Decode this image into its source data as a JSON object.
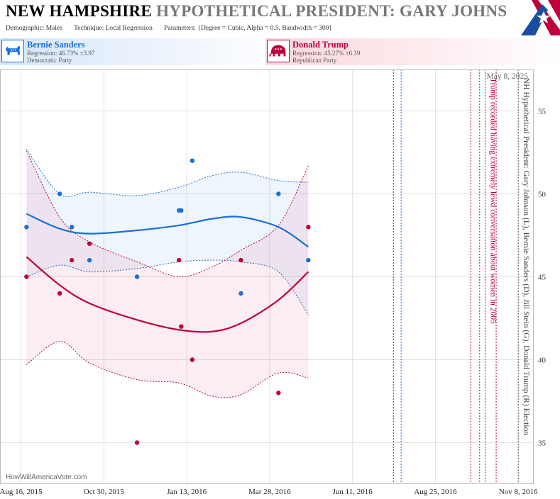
{
  "header": {
    "state": "NEW HAMPSHIRE",
    "title_rest": "HYPOTHETICAL PRESIDENT:  GARY JOHNSON",
    "demographic": "Demographic: Males",
    "technique": "Technique: Local Regression",
    "parameters": "Parameters: {Degree = Cubic, Alpha = 0.5, Bandwidth = 300}"
  },
  "candidates": {
    "dem": {
      "name": "Bernie Sanders",
      "regression": "Regression: 46.73% ±3.97",
      "party": "Democratic Party",
      "color": "#1a6fd8",
      "logo": "donkey-icon"
    },
    "rep": {
      "name": "Donald Trump",
      "regression": "Regression: 45.27% ±6.39",
      "party": "Republican Party",
      "color": "#c0003a",
      "logo": "elephant-icon"
    }
  },
  "watermark": "HowWillAmericaVote.com",
  "chart_data": {
    "type": "scatter",
    "x_range": [
      "2015-07-28",
      "2016-11-22"
    ],
    "ylim": [
      32.5,
      57.5
    ],
    "y_ticks": [
      35,
      40,
      45,
      50,
      55
    ],
    "x_ticks": [
      {
        "date": "2015-08-16",
        "label": "Aug 16, 2015"
      },
      {
        "date": "2015-10-30",
        "label": "Oct 30, 2015"
      },
      {
        "date": "2016-01-13",
        "label": "Jan 13, 2016"
      },
      {
        "date": "2016-03-28",
        "label": "Mar 28, 2016"
      },
      {
        "date": "2016-06-11",
        "label": "Jun 11, 2016"
      },
      {
        "date": "2016-08-25",
        "label": "Aug 25, 2016"
      },
      {
        "date": "2016-11-08",
        "label": "Nov 8, 2016"
      }
    ],
    "date_label": "May 8, 2025",
    "series": [
      {
        "name": "Bernie Sanders",
        "color": "#1a6fd8",
        "points": [
          {
            "x": "2015-08-21",
            "y": 48
          },
          {
            "x": "2015-09-20",
            "y": 50
          },
          {
            "x": "2015-10-01",
            "y": 48
          },
          {
            "x": "2015-10-17",
            "y": 46
          },
          {
            "x": "2015-11-29",
            "y": 45
          },
          {
            "x": "2016-01-06",
            "y": 49
          },
          {
            "x": "2016-01-08",
            "y": 49
          },
          {
            "x": "2016-01-18",
            "y": 52
          },
          {
            "x": "2016-03-02",
            "y": 44
          },
          {
            "x": "2016-04-05",
            "y": 50
          },
          {
            "x": "2016-05-02",
            "y": 46
          }
        ],
        "fit": [
          {
            "x": "2015-08-21",
            "y": 48.8
          },
          {
            "x": "2015-09-20",
            "y": 47.9
          },
          {
            "x": "2015-10-17",
            "y": 47.6
          },
          {
            "x": "2015-11-29",
            "y": 47.8
          },
          {
            "x": "2016-01-06",
            "y": 48.1
          },
          {
            "x": "2016-02-05",
            "y": 48.5
          },
          {
            "x": "2016-03-02",
            "y": 48.6
          },
          {
            "x": "2016-04-05",
            "y": 48.0
          },
          {
            "x": "2016-05-02",
            "y": 46.8
          }
        ],
        "upper": [
          {
            "x": "2015-08-21",
            "y": 52.7
          },
          {
            "x": "2015-09-20",
            "y": 50.0
          },
          {
            "x": "2015-10-17",
            "y": 50.1
          },
          {
            "x": "2015-11-29",
            "y": 49.9
          },
          {
            "x": "2016-01-06",
            "y": 50.4
          },
          {
            "x": "2016-02-05",
            "y": 51.1
          },
          {
            "x": "2016-03-02",
            "y": 51.3
          },
          {
            "x": "2016-04-05",
            "y": 50.8
          },
          {
            "x": "2016-05-02",
            "y": 50.7
          }
        ],
        "lower": [
          {
            "x": "2015-08-21",
            "y": 45.0
          },
          {
            "x": "2015-09-20",
            "y": 45.7
          },
          {
            "x": "2015-10-17",
            "y": 45.3
          },
          {
            "x": "2015-11-29",
            "y": 45.5
          },
          {
            "x": "2016-01-06",
            "y": 45.9
          },
          {
            "x": "2016-02-05",
            "y": 46.0
          },
          {
            "x": "2016-03-02",
            "y": 45.9
          },
          {
            "x": "2016-04-05",
            "y": 45.3
          },
          {
            "x": "2016-05-02",
            "y": 42.7
          }
        ]
      },
      {
        "name": "Donald Trump",
        "color": "#c0003a",
        "points": [
          {
            "x": "2015-08-21",
            "y": 45
          },
          {
            "x": "2015-09-20",
            "y": 44
          },
          {
            "x": "2015-10-01",
            "y": 46
          },
          {
            "x": "2015-10-17",
            "y": 47
          },
          {
            "x": "2015-11-29",
            "y": 35
          },
          {
            "x": "2016-01-06",
            "y": 46
          },
          {
            "x": "2016-01-08",
            "y": 42
          },
          {
            "x": "2016-01-18",
            "y": 40
          },
          {
            "x": "2016-03-02",
            "y": 46
          },
          {
            "x": "2016-04-05",
            "y": 38
          },
          {
            "x": "2016-05-02",
            "y": 48
          }
        ],
        "fit": [
          {
            "x": "2015-08-21",
            "y": 46.2
          },
          {
            "x": "2015-09-20",
            "y": 44.5
          },
          {
            "x": "2015-10-17",
            "y": 43.4
          },
          {
            "x": "2015-11-29",
            "y": 42.4
          },
          {
            "x": "2016-01-06",
            "y": 41.8
          },
          {
            "x": "2016-02-05",
            "y": 41.7
          },
          {
            "x": "2016-03-02",
            "y": 42.2
          },
          {
            "x": "2016-04-05",
            "y": 43.6
          },
          {
            "x": "2016-05-02",
            "y": 45.3
          }
        ],
        "upper": [
          {
            "x": "2015-08-21",
            "y": 52.6
          },
          {
            "x": "2015-09-20",
            "y": 48.6
          },
          {
            "x": "2015-10-17",
            "y": 47.1
          },
          {
            "x": "2015-11-29",
            "y": 45.9
          },
          {
            "x": "2016-01-06",
            "y": 45.0
          },
          {
            "x": "2016-02-05",
            "y": 45.6
          },
          {
            "x": "2016-03-02",
            "y": 46.6
          },
          {
            "x": "2016-04-05",
            "y": 48.1
          },
          {
            "x": "2016-05-02",
            "y": 51.7
          }
        ],
        "lower": [
          {
            "x": "2015-08-21",
            "y": 39.7
          },
          {
            "x": "2015-09-20",
            "y": 41.1
          },
          {
            "x": "2015-10-17",
            "y": 39.8
          },
          {
            "x": "2015-11-29",
            "y": 38.8
          },
          {
            "x": "2016-01-06",
            "y": 38.6
          },
          {
            "x": "2016-02-05",
            "y": 37.8
          },
          {
            "x": "2016-03-02",
            "y": 37.9
          },
          {
            "x": "2016-04-05",
            "y": 39.2
          },
          {
            "x": "2016-05-02",
            "y": 38.9
          }
        ]
      }
    ],
    "event_lines": [
      {
        "x": "2016-07-18",
        "color": "#c0003a"
      },
      {
        "x": "2016-07-25",
        "color": "#1a6fd8"
      },
      {
        "x": "2016-09-26",
        "color": "#c0003a"
      },
      {
        "x": "2016-10-04",
        "color": "#1a6fd8"
      },
      {
        "x": "2016-10-09",
        "color": "#c0003a"
      },
      {
        "x": "2016-10-19",
        "color": "#c0003a"
      },
      {
        "x": "2016-11-08",
        "color": "#555555"
      }
    ],
    "annotations": [
      {
        "x": "2016-10-09",
        "text": "Trump recorded having extremely lewd conversation about women in 2005",
        "color": "#c0003a"
      },
      {
        "x": "2016-11-08",
        "text": "NH Hypothetical President: Gary Johnson (L), Bernie Sanders (D), Jill Stein (G), Donald Trump (R) Election",
        "color": "#444444"
      }
    ]
  }
}
